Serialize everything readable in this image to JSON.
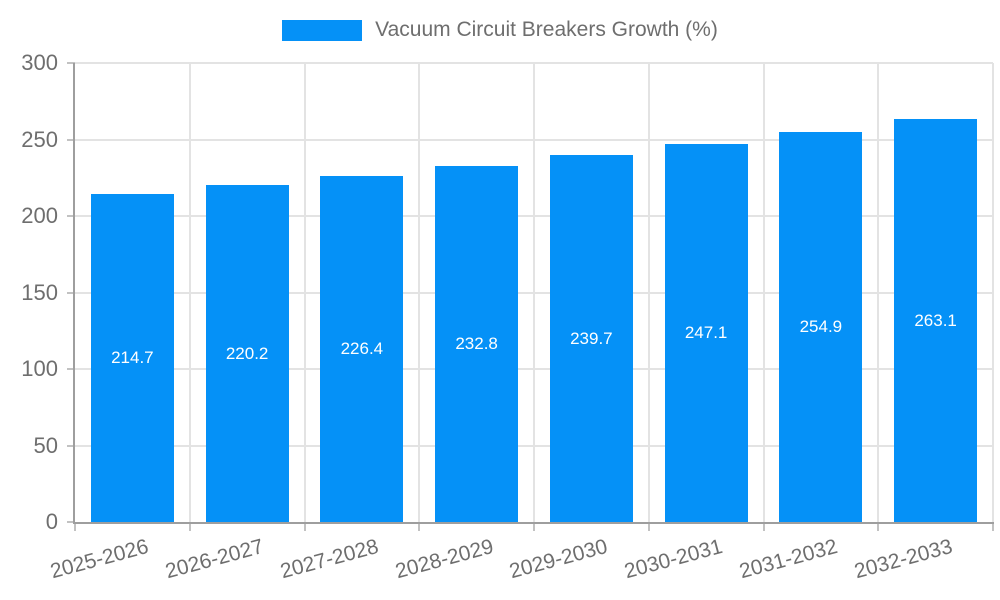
{
  "legend": {
    "label": "Vacuum Circuit Breakers Growth (%)",
    "swatch_color": "#0591f7"
  },
  "chart_data": {
    "type": "bar",
    "title": "Vacuum Circuit Breakers Growth (%)",
    "categories": [
      "2025-2026",
      "2026-2027",
      "2027-2028",
      "2028-2029",
      "2029-2030",
      "2030-2031",
      "2031-2032",
      "2032-2033"
    ],
    "values": [
      214.7,
      220.2,
      226.4,
      232.8,
      239.7,
      247.1,
      254.9,
      263.1
    ],
    "series_name": "Vacuum Circuit Breakers Growth (%)",
    "xlabel": "",
    "ylabel": "",
    "ylim": [
      0,
      300
    ],
    "y_ticks": [
      0,
      50,
      100,
      150,
      200,
      250,
      300
    ],
    "grid": true,
    "legend_position": "top",
    "x_label_rotation_deg": -15,
    "bar_color": "#0591f7",
    "bar_label_color": "#ffffff",
    "axis_text_color": "#6e6e6e",
    "axis_line_color": "#9e9e9e",
    "gridline_color": "#e3e3e3"
  }
}
